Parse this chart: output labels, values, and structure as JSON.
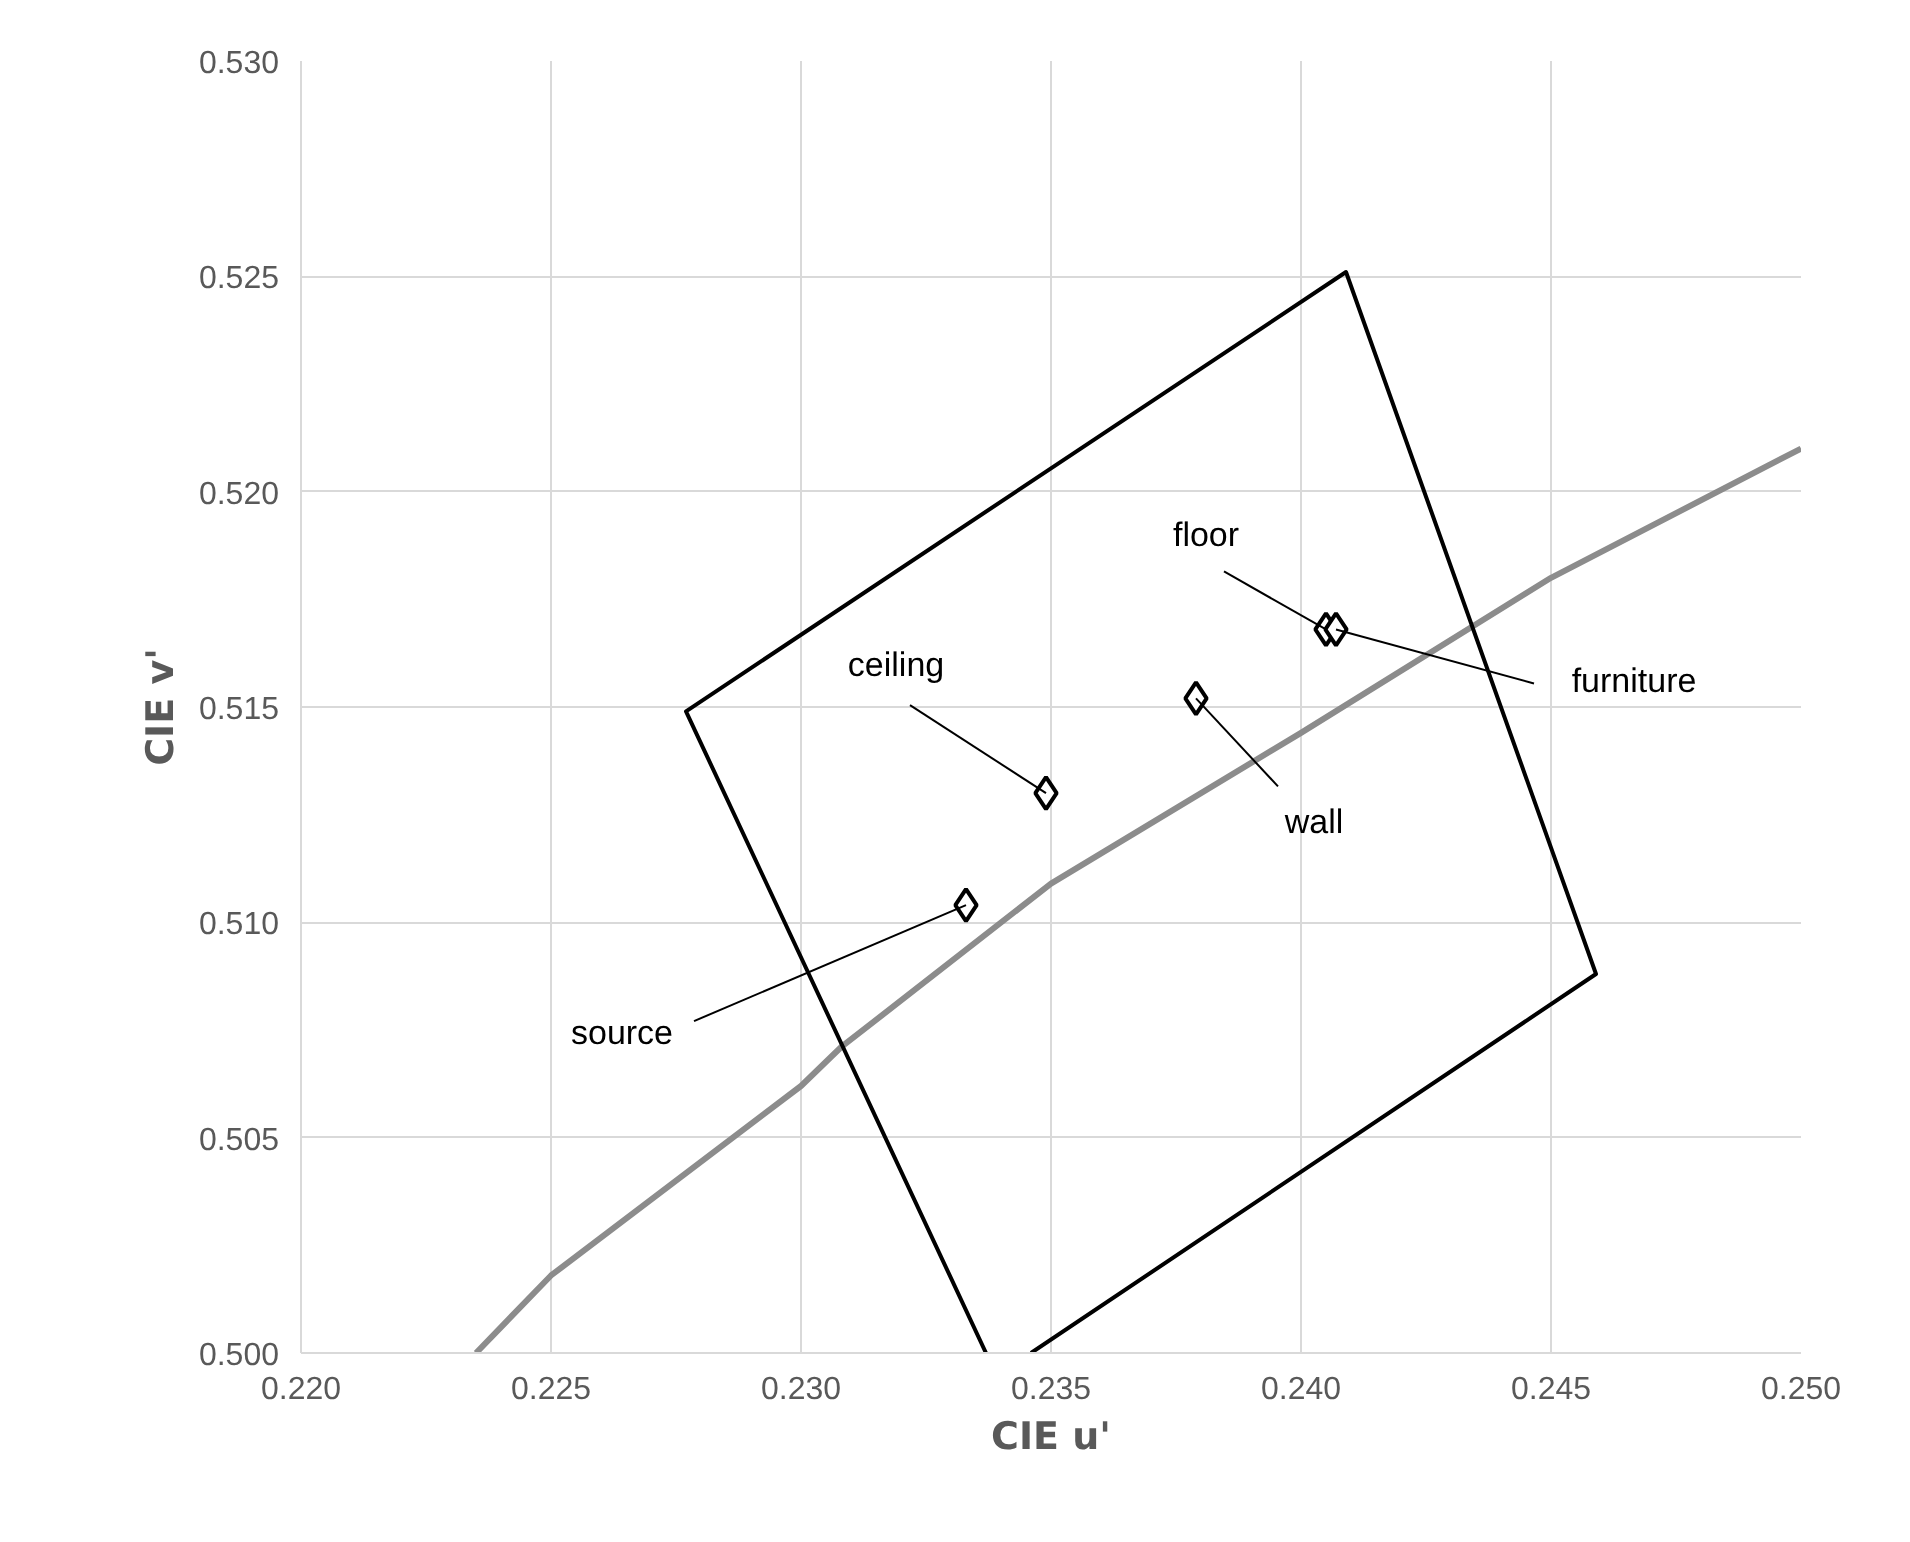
{
  "chart_data": {
    "type": "scatter",
    "xlabel": "CIE u'",
    "ylabel": "CIE v'",
    "xlim": [
      0.22,
      0.25
    ],
    "ylim": [
      0.5,
      0.53
    ],
    "xticks": [
      {
        "value": 0.22,
        "label": "0.220"
      },
      {
        "value": 0.225,
        "label": "0.225"
      },
      {
        "value": 0.23,
        "label": "0.230"
      },
      {
        "value": 0.235,
        "label": "0.235"
      },
      {
        "value": 0.24,
        "label": "0.240"
      },
      {
        "value": 0.245,
        "label": "0.245"
      },
      {
        "value": 0.25,
        "label": "0.250"
      }
    ],
    "yticks": [
      {
        "value": 0.5,
        "label": "0.500"
      },
      {
        "value": 0.505,
        "label": "0.505"
      },
      {
        "value": 0.51,
        "label": "0.510"
      },
      {
        "value": 0.515,
        "label": "0.515"
      },
      {
        "value": 0.52,
        "label": "0.520"
      },
      {
        "value": 0.525,
        "label": "0.525"
      },
      {
        "value": 0.53,
        "label": "0.530"
      }
    ],
    "grid": true,
    "series": [
      {
        "type": "line",
        "color": "#8c8c8c",
        "x": [
          0.2235,
          0.225,
          0.23,
          0.2308,
          0.235,
          0.24,
          0.245,
          0.25
        ],
        "values": [
          0.5,
          0.5018,
          0.5062,
          0.5071,
          0.5109,
          0.5144,
          0.518,
          0.521
        ]
      },
      {
        "type": "line",
        "color": "#000000",
        "x": [
          0.2337,
          0.2277,
          0.2409,
          0.2459,
          0.2346
        ],
        "values": [
          0.5,
          0.5149,
          0.5251,
          0.5088,
          0.5
        ]
      },
      {
        "color": "#000000",
        "marker": "diamond",
        "x": [
          0.2333,
          0.2349,
          0.2379,
          0.2405,
          0.2407
        ],
        "values": [
          0.5104,
          0.513,
          0.5152,
          0.5168,
          0.5168
        ]
      }
    ],
    "annotations": [
      {
        "text": "source",
        "x": 0.2333,
        "y": 0.5104
      },
      {
        "text": "ceiling",
        "x": 0.2349,
        "y": 0.513
      },
      {
        "text": "wall",
        "x": 0.2379,
        "y": 0.5152
      },
      {
        "text": "floor",
        "x": 0.2405,
        "y": 0.5168
      },
      {
        "text": "furniture",
        "x": 0.2407,
        "y": 0.5168
      }
    ]
  }
}
